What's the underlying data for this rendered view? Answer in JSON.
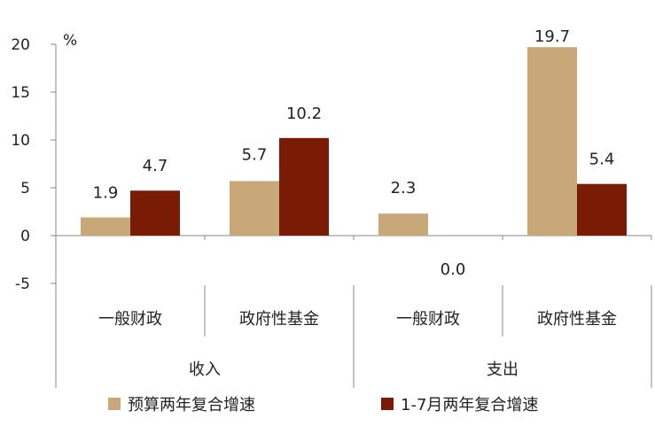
{
  "chart_data": {
    "type": "bar",
    "unit": "%",
    "ylim": [
      -5,
      20
    ],
    "yticks": [
      20,
      15,
      10,
      5,
      0,
      -5
    ],
    "negative_tick_color": "#e31b23",
    "grid": false,
    "legend_position": "bottom",
    "groups": [
      {
        "label": "收入",
        "categories": [
          "一般财政",
          "政府性基金"
        ]
      },
      {
        "label": "支出",
        "categories": [
          "一般财政",
          "政府性基金"
        ]
      }
    ],
    "series": [
      {
        "name": "预算两年复合增速",
        "color": "#c8a878",
        "values": [
          1.9,
          5.7,
          2.3,
          19.7
        ],
        "labels": [
          "1.9",
          "5.7",
          "2.3",
          "19.7"
        ]
      },
      {
        "name": "1-7月两年复合增速",
        "color": "#7a1c05",
        "values": [
          4.7,
          10.2,
          0.0,
          5.4
        ],
        "labels": [
          "4.7",
          "10.2",
          "0.0",
          "5.4"
        ]
      }
    ]
  }
}
